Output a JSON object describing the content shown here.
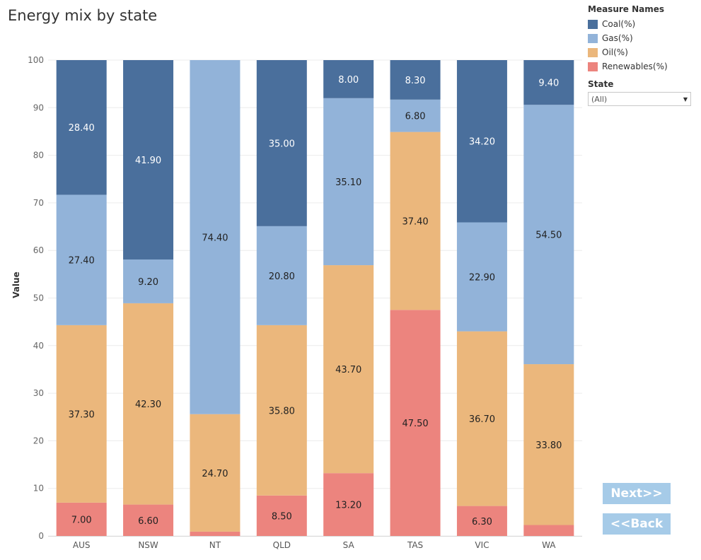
{
  "title": "Energy mix by state",
  "legend": {
    "header": "Measure Names",
    "items": [
      {
        "label": "Coal(%)",
        "color": "#4a6f9c"
      },
      {
        "label": "Gas(%)",
        "color": "#92b3d9"
      },
      {
        "label": "Oil(%)",
        "color": "#ebb77c"
      },
      {
        "label": "Renewables(%)",
        "color": "#ec847e"
      }
    ]
  },
  "filter": {
    "label": "State",
    "value": "(All)"
  },
  "buttons": {
    "next": "Next>>",
    "back": "<<Back"
  },
  "chart_data": {
    "type": "bar",
    "stacked": true,
    "title": "Energy mix by state",
    "xlabel": "",
    "ylabel": "Value",
    "ylim": [
      0,
      100
    ],
    "yticks": [
      0,
      10,
      20,
      30,
      40,
      50,
      60,
      70,
      80,
      90,
      100
    ],
    "categories": [
      "AUS",
      "NSW",
      "NT",
      "QLD",
      "SA",
      "TAS",
      "VIC",
      "WA"
    ],
    "series": [
      {
        "name": "Renewables(%)",
        "color": "#ec847e",
        "values": [
          7.0,
          6.6,
          0.9,
          8.5,
          13.2,
          47.5,
          6.3,
          2.3
        ],
        "labels": [
          "7.00",
          "6.60",
          "",
          "8.50",
          "13.20",
          "47.50",
          "6.30",
          ""
        ]
      },
      {
        "name": "Oil(%)",
        "color": "#ebb77c",
        "values": [
          37.3,
          42.3,
          24.7,
          35.8,
          43.7,
          37.4,
          36.7,
          33.8
        ],
        "labels": [
          "37.30",
          "42.30",
          "24.70",
          "35.80",
          "43.70",
          "37.40",
          "36.70",
          "33.80"
        ]
      },
      {
        "name": "Gas(%)",
        "color": "#92b3d9",
        "values": [
          27.4,
          9.2,
          74.4,
          20.8,
          35.1,
          6.8,
          22.9,
          54.5
        ],
        "labels": [
          "27.40",
          "9.20",
          "74.40",
          "20.80",
          "35.10",
          "6.80",
          "22.90",
          "54.50"
        ]
      },
      {
        "name": "Coal(%)",
        "color": "#4a6f9c",
        "values": [
          28.4,
          41.9,
          0.0,
          35.0,
          8.0,
          8.3,
          34.2,
          9.4
        ],
        "labels": [
          "28.40",
          "41.90",
          "",
          "35.00",
          "8.00",
          "8.30",
          "34.20",
          "9.40"
        ]
      }
    ]
  }
}
